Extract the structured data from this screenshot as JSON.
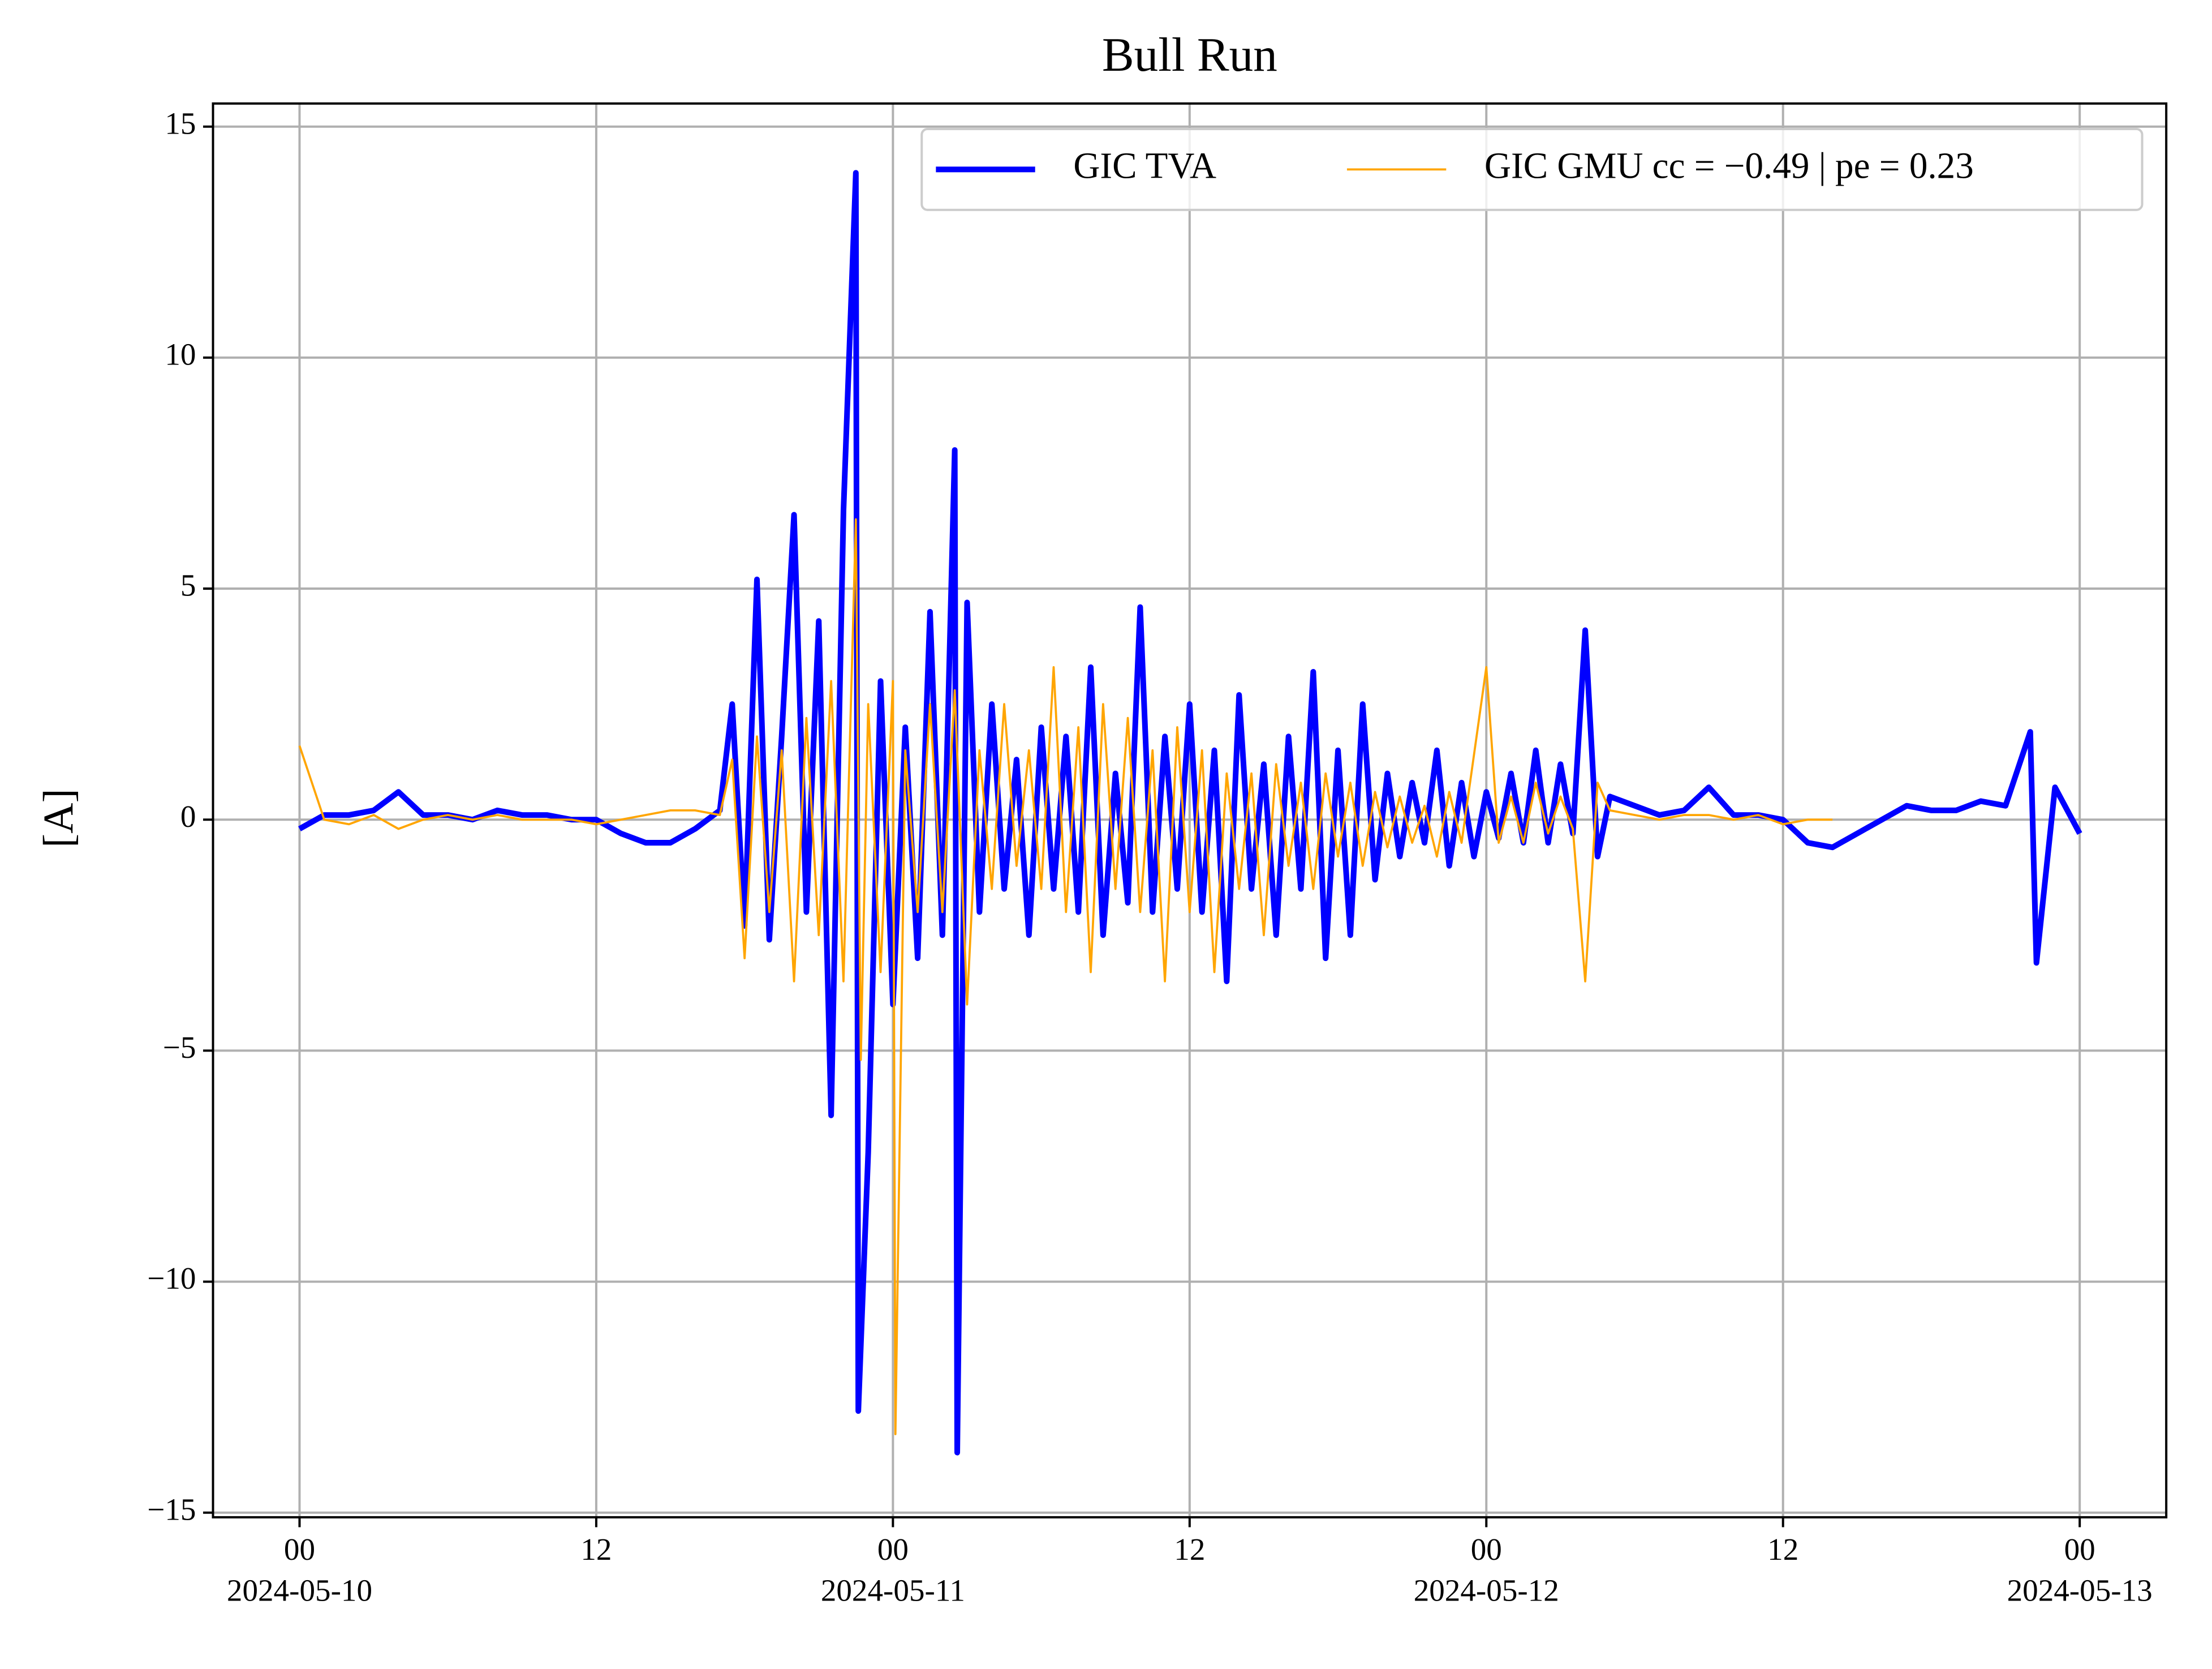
{
  "chart_data": {
    "type": "line",
    "title": "Bull Run",
    "ylabel": "[A]",
    "grid": true,
    "legend": "upper right",
    "xlim": [
      "2024-05-09T20:30",
      "2024-05-13T03:30"
    ],
    "ylim": [
      -15.1,
      15.5
    ],
    "yticks": [
      {
        "value": -15,
        "label": "−15"
      },
      {
        "value": -10,
        "label": "−10"
      },
      {
        "value": -5,
        "label": "−5"
      },
      0,
      5,
      10,
      15
    ],
    "xticks": [
      {
        "value": "2024-05-10T00:00",
        "label": "00"
      },
      {
        "value": "2024-05-10T12:00",
        "label": "12"
      },
      {
        "value": "2024-05-11T00:00",
        "label": "00"
      },
      {
        "value": "2024-05-11T12:00",
        "label": "12"
      },
      {
        "value": "2024-05-12T00:00",
        "label": "00"
      },
      {
        "value": "2024-05-12T12:00",
        "label": "12"
      },
      {
        "value": "2024-05-13T00:00",
        "label": "00"
      }
    ],
    "xtick_dates": [
      {
        "value": "2024-05-10T00:00",
        "label": "2024-05-10"
      },
      {
        "value": "2024-05-11T00:00",
        "label": "2024-05-11"
      },
      {
        "value": "2024-05-12T00:00",
        "label": "2024-05-12"
      },
      {
        "value": "2024-05-13T00:00",
        "label": "2024-05-13"
      }
    ],
    "series": [
      {
        "name": "GIC TVA",
        "color": "#0000ff",
        "linewidth": 4,
        "x": [
          "2024-05-10T00:00",
          "2024-05-10T01:00",
          "2024-05-10T02:00",
          "2024-05-10T03:00",
          "2024-05-10T04:00",
          "2024-05-10T05:00",
          "2024-05-10T06:00",
          "2024-05-10T07:00",
          "2024-05-10T08:00",
          "2024-05-10T09:00",
          "2024-05-10T10:00",
          "2024-05-10T11:00",
          "2024-05-10T12:00",
          "2024-05-10T13:00",
          "2024-05-10T14:00",
          "2024-05-10T15:00",
          "2024-05-10T16:00",
          "2024-05-10T17:00",
          "2024-05-10T17:30",
          "2024-05-10T18:00",
          "2024-05-10T18:30",
          "2024-05-10T19:00",
          "2024-05-10T19:30",
          "2024-05-10T20:00",
          "2024-05-10T20:30",
          "2024-05-10T21:00",
          "2024-05-10T21:30",
          "2024-05-10T22:00",
          "2024-05-10T22:30",
          "2024-05-10T22:36",
          "2024-05-10T23:00",
          "2024-05-10T23:30",
          "2024-05-11T00:00",
          "2024-05-11T00:30",
          "2024-05-11T01:00",
          "2024-05-11T01:30",
          "2024-05-11T02:00",
          "2024-05-11T02:30",
          "2024-05-11T02:36",
          "2024-05-11T03:00",
          "2024-05-11T03:30",
          "2024-05-11T04:00",
          "2024-05-11T04:30",
          "2024-05-11T05:00",
          "2024-05-11T05:30",
          "2024-05-11T06:00",
          "2024-05-11T06:30",
          "2024-05-11T07:00",
          "2024-05-11T07:30",
          "2024-05-11T08:00",
          "2024-05-11T08:30",
          "2024-05-11T09:00",
          "2024-05-11T09:30",
          "2024-05-11T10:00",
          "2024-05-11T10:30",
          "2024-05-11T11:00",
          "2024-05-11T11:30",
          "2024-05-11T12:00",
          "2024-05-11T12:30",
          "2024-05-11T13:00",
          "2024-05-11T13:30",
          "2024-05-11T14:00",
          "2024-05-11T14:30",
          "2024-05-11T15:00",
          "2024-05-11T15:30",
          "2024-05-11T16:00",
          "2024-05-11T16:30",
          "2024-05-11T17:00",
          "2024-05-11T17:30",
          "2024-05-11T18:00",
          "2024-05-11T18:30",
          "2024-05-11T19:00",
          "2024-05-11T19:30",
          "2024-05-11T20:00",
          "2024-05-11T20:30",
          "2024-05-11T21:00",
          "2024-05-11T21:30",
          "2024-05-11T22:00",
          "2024-05-11T22:30",
          "2024-05-11T23:00",
          "2024-05-11T23:30",
          "2024-05-12T00:00",
          "2024-05-12T00:30",
          "2024-05-12T01:00",
          "2024-05-12T01:30",
          "2024-05-12T02:00",
          "2024-05-12T02:30",
          "2024-05-12T03:00",
          "2024-05-12T03:30",
          "2024-05-12T04:00",
          "2024-05-12T04:30",
          "2024-05-12T05:00",
          "2024-05-12T06:00",
          "2024-05-12T07:00",
          "2024-05-12T08:00",
          "2024-05-12T09:00",
          "2024-05-12T10:00",
          "2024-05-12T11:00",
          "2024-05-12T12:00",
          "2024-05-12T13:00",
          "2024-05-12T14:00",
          "2024-05-12T15:00",
          "2024-05-12T16:00",
          "2024-05-12T17:00",
          "2024-05-12T18:00",
          "2024-05-12T19:00",
          "2024-05-12T20:00",
          "2024-05-12T21:00",
          "2024-05-12T22:00",
          "2024-05-12T22:15",
          "2024-05-12T23:00",
          "2024-05-13T00:00"
        ],
        "values": [
          -0.2,
          0.1,
          0.1,
          0.2,
          0.6,
          0.1,
          0.1,
          0.0,
          0.2,
          0.1,
          0.1,
          0.0,
          0.0,
          -0.3,
          -0.5,
          -0.5,
          -0.2,
          0.2,
          2.5,
          -2.3,
          5.2,
          -2.6,
          1.8,
          6.6,
          -2.0,
          4.3,
          -6.4,
          6.7,
          14.0,
          -12.8,
          -7.2,
          3.0,
          -4.0,
          2.0,
          -3.0,
          4.5,
          -2.5,
          8.0,
          -13.7,
          4.7,
          -2.0,
          2.5,
          -1.5,
          1.3,
          -2.5,
          2.0,
          -1.5,
          1.8,
          -2.0,
          3.3,
          -2.5,
          1.0,
          -1.8,
          4.6,
          -2.0,
          1.8,
          -1.5,
          2.5,
          -2.0,
          1.5,
          -3.5,
          2.7,
          -1.5,
          1.2,
          -2.5,
          1.8,
          -1.5,
          3.2,
          -3.0,
          1.5,
          -2.5,
          2.5,
          -1.3,
          1.0,
          -0.8,
          0.8,
          -0.5,
          1.5,
          -1.0,
          0.8,
          -0.8,
          0.6,
          -0.4,
          1.0,
          -0.5,
          1.5,
          -0.5,
          1.2,
          -0.3,
          4.1,
          -0.8,
          0.5,
          0.3,
          0.1,
          0.2,
          0.7,
          0.1,
          0.1,
          0.0,
          -0.5,
          -0.6,
          -0.3,
          0.0,
          0.3,
          0.2,
          0.2,
          0.4,
          0.3,
          1.9,
          -3.1,
          0.7,
          -0.3
        ]
      },
      {
        "name": "GIC GMU cc = −0.49 | pe = 0.23",
        "color": "#ffa500",
        "linewidth": 1.5,
        "x": [
          "2024-05-10T00:00",
          "2024-05-10T01:00",
          "2024-05-10T02:00",
          "2024-05-10T03:00",
          "2024-05-10T04:00",
          "2024-05-10T05:00",
          "2024-05-10T06:00",
          "2024-05-10T07:00",
          "2024-05-10T08:00",
          "2024-05-10T09:00",
          "2024-05-10T10:00",
          "2024-05-10T11:00",
          "2024-05-10T12:00",
          "2024-05-10T13:00",
          "2024-05-10T14:00",
          "2024-05-10T15:00",
          "2024-05-10T16:00",
          "2024-05-10T17:00",
          "2024-05-10T17:30",
          "2024-05-10T18:00",
          "2024-05-10T18:30",
          "2024-05-10T19:00",
          "2024-05-10T19:30",
          "2024-05-10T20:00",
          "2024-05-10T20:30",
          "2024-05-10T21:00",
          "2024-05-10T21:30",
          "2024-05-10T22:00",
          "2024-05-10T22:30",
          "2024-05-10T22:42",
          "2024-05-10T23:00",
          "2024-05-10T23:30",
          "2024-05-11T00:00",
          "2024-05-11T00:06",
          "2024-05-11T00:30",
          "2024-05-11T01:00",
          "2024-05-11T01:30",
          "2024-05-11T02:00",
          "2024-05-11T02:30",
          "2024-05-11T03:00",
          "2024-05-11T03:30",
          "2024-05-11T04:00",
          "2024-05-11T04:30",
          "2024-05-11T05:00",
          "2024-05-11T05:30",
          "2024-05-11T06:00",
          "2024-05-11T06:30",
          "2024-05-11T07:00",
          "2024-05-11T07:30",
          "2024-05-11T08:00",
          "2024-05-11T08:30",
          "2024-05-11T09:00",
          "2024-05-11T09:30",
          "2024-05-11T10:00",
          "2024-05-11T10:30",
          "2024-05-11T11:00",
          "2024-05-11T11:30",
          "2024-05-11T12:00",
          "2024-05-11T12:30",
          "2024-05-11T13:00",
          "2024-05-11T13:30",
          "2024-05-11T14:00",
          "2024-05-11T14:30",
          "2024-05-11T15:00",
          "2024-05-11T15:30",
          "2024-05-11T16:00",
          "2024-05-11T16:30",
          "2024-05-11T17:00",
          "2024-05-11T17:30",
          "2024-05-11T18:00",
          "2024-05-11T18:30",
          "2024-05-11T19:00",
          "2024-05-11T19:30",
          "2024-05-11T20:00",
          "2024-05-11T20:30",
          "2024-05-11T21:00",
          "2024-05-11T21:30",
          "2024-05-11T22:00",
          "2024-05-11T22:30",
          "2024-05-11T23:00",
          "2024-05-12T00:00",
          "2024-05-12T00:30",
          "2024-05-12T01:00",
          "2024-05-12T01:30",
          "2024-05-12T02:00",
          "2024-05-12T02:30",
          "2024-05-12T03:00",
          "2024-05-12T03:30",
          "2024-05-12T04:00",
          "2024-05-12T04:30",
          "2024-05-12T05:00",
          "2024-05-12T06:00",
          "2024-05-12T07:00",
          "2024-05-12T08:00",
          "2024-05-12T09:00",
          "2024-05-12T10:00",
          "2024-05-12T11:00",
          "2024-05-12T12:00",
          "2024-05-12T13:00",
          "2024-05-12T14:00"
        ],
        "values": [
          1.6,
          0.0,
          -0.1,
          0.1,
          -0.2,
          0.0,
          0.1,
          0.0,
          0.1,
          0.0,
          0.0,
          0.0,
          -0.1,
          0.0,
          0.1,
          0.2,
          0.2,
          0.1,
          1.3,
          -3.0,
          1.8,
          -2.0,
          1.5,
          -3.5,
          2.2,
          -2.5,
          3.0,
          -3.5,
          6.5,
          -5.2,
          2.5,
          -3.3,
          3.0,
          -13.3,
          1.5,
          -2.0,
          2.5,
          -2.0,
          2.8,
          -4.0,
          1.5,
          -1.5,
          2.5,
          -1.0,
          1.5,
          -1.5,
          3.3,
          -2.0,
          2.0,
          -3.3,
          2.5,
          -1.5,
          2.2,
          -2.0,
          1.5,
          -3.5,
          2.0,
          -2.0,
          1.5,
          -3.3,
          1.0,
          -1.5,
          1.0,
          -2.5,
          1.2,
          -1.0,
          0.8,
          -1.5,
          1.0,
          -0.8,
          0.8,
          -1.0,
          0.6,
          -0.6,
          0.5,
          -0.5,
          0.3,
          -0.8,
          0.6,
          -0.5,
          3.3,
          -0.5,
          0.5,
          -0.5,
          0.8,
          -0.3,
          0.5,
          -0.2,
          -3.5,
          0.8,
          0.2,
          0.1,
          0.0,
          0.1,
          0.1,
          0.0,
          0.1,
          -0.1,
          0.0,
          0.0
        ]
      }
    ]
  }
}
